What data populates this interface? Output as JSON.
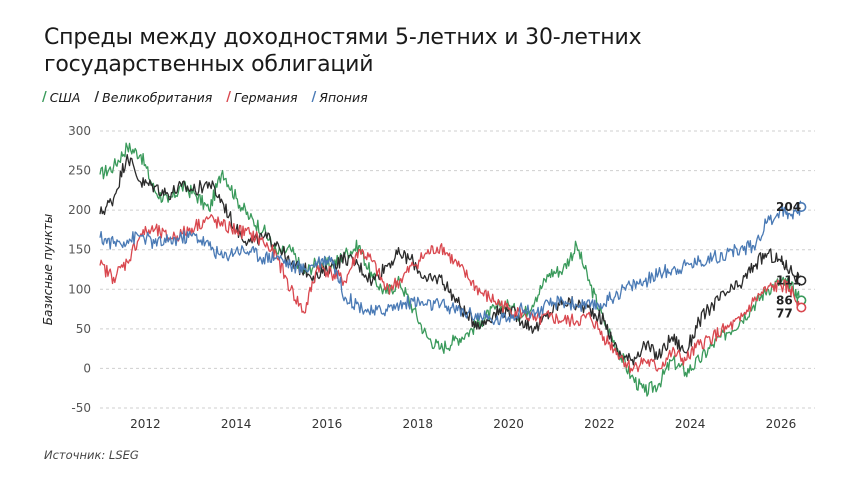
{
  "title": "Спреды между доходностями 5-летних и 30-летних государственных облигаций",
  "source": "Источник: LSEG",
  "chart_data": {
    "type": "line",
    "ylabel": "Базисные пункты",
    "xlabel": "",
    "ylim": [
      -50,
      300
    ],
    "xlim": [
      2011.0,
      2026.75
    ],
    "y_ticks": [
      300,
      250,
      200,
      150,
      100,
      50,
      0,
      -50
    ],
    "x_ticks": [
      2012,
      2014,
      2016,
      2018,
      2020,
      2022,
      2024,
      2026
    ],
    "grid": "horizontal-dashed",
    "legend_position": "top-left",
    "series": [
      {
        "name": "США",
        "color": "#3a9a5b",
        "end_value": "86",
        "x": [
          2011.0,
          2011.3,
          2011.6,
          2011.9,
          2012.2,
          2012.5,
          2012.8,
          2013.1,
          2013.4,
          2013.7,
          2014.0,
          2014.3,
          2014.6,
          2014.9,
          2015.2,
          2015.5,
          2015.8,
          2016.1,
          2016.4,
          2016.7,
          2017.0,
          2017.3,
          2017.6,
          2017.9,
          2018.2,
          2018.5,
          2018.8,
          2019.1,
          2019.4,
          2019.7,
          2020.0,
          2020.3,
          2020.6,
          2020.9,
          2021.2,
          2021.5,
          2021.8,
          2022.1,
          2022.4,
          2022.7,
          2023.0,
          2023.3,
          2023.6,
          2023.9,
          2024.2,
          2024.5,
          2024.8,
          2025.1,
          2025.4,
          2025.7,
          2026.0,
          2026.2,
          2026.45
        ],
        "values": [
          245,
          255,
          280,
          270,
          225,
          210,
          230,
          220,
          200,
          250,
          215,
          190,
          175,
          145,
          150,
          120,
          135,
          130,
          145,
          155,
          115,
          95,
          110,
          75,
          40,
          25,
          35,
          45,
          60,
          75,
          80,
          65,
          90,
          120,
          125,
          155,
          105,
          60,
          25,
          -10,
          -30,
          -20,
          10,
          -5,
          10,
          30,
          45,
          60,
          80,
          100,
          110,
          105,
          86
        ]
      },
      {
        "name": "Великобритания",
        "color": "#2b2b2b",
        "end_value": "111",
        "x": [
          2011.0,
          2011.3,
          2011.6,
          2011.9,
          2012.2,
          2012.5,
          2012.8,
          2013.1,
          2013.4,
          2013.7,
          2014.0,
          2014.3,
          2014.6,
          2014.9,
          2015.2,
          2015.5,
          2015.8,
          2016.1,
          2016.4,
          2016.7,
          2017.0,
          2017.3,
          2017.6,
          2017.9,
          2018.2,
          2018.5,
          2018.8,
          2019.1,
          2019.4,
          2019.7,
          2020.0,
          2020.3,
          2020.6,
          2020.9,
          2021.2,
          2021.5,
          2021.8,
          2022.1,
          2022.4,
          2022.7,
          2023.0,
          2023.3,
          2023.6,
          2023.9,
          2024.2,
          2024.5,
          2024.8,
          2025.1,
          2025.4,
          2025.7,
          2026.0,
          2026.2,
          2026.45
        ],
        "values": [
          195,
          215,
          270,
          235,
          230,
          220,
          230,
          225,
          235,
          210,
          175,
          160,
          165,
          160,
          130,
          125,
          115,
          130,
          140,
          130,
          110,
          130,
          145,
          135,
          110,
          115,
          90,
          65,
          55,
          70,
          75,
          60,
          50,
          70,
          85,
          80,
          75,
          60,
          20,
          10,
          30,
          15,
          40,
          20,
          60,
          80,
          95,
          105,
          130,
          145,
          135,
          125,
          111
        ]
      },
      {
        "name": "Германия",
        "color": "#d9484f",
        "end_value": "77",
        "x": [
          2011.0,
          2011.3,
          2011.6,
          2011.9,
          2012.2,
          2012.5,
          2012.8,
          2013.1,
          2013.4,
          2013.7,
          2014.0,
          2014.3,
          2014.6,
          2014.9,
          2015.2,
          2015.5,
          2015.8,
          2016.1,
          2016.4,
          2016.7,
          2017.0,
          2017.3,
          2017.6,
          2017.9,
          2018.2,
          2018.5,
          2018.8,
          2019.1,
          2019.4,
          2019.7,
          2020.0,
          2020.3,
          2020.6,
          2020.9,
          2021.2,
          2021.5,
          2021.8,
          2022.1,
          2022.4,
          2022.7,
          2023.0,
          2023.3,
          2023.6,
          2023.9,
          2024.2,
          2024.5,
          2024.8,
          2025.1,
          2025.4,
          2025.7,
          2026.0,
          2026.2,
          2026.45
        ],
        "values": [
          130,
          115,
          135,
          170,
          175,
          165,
          170,
          180,
          190,
          180,
          175,
          170,
          160,
          140,
          100,
          70,
          130,
          120,
          110,
          150,
          135,
          100,
          110,
          130,
          145,
          155,
          135,
          115,
          95,
          85,
          75,
          70,
          60,
          65,
          60,
          60,
          65,
          40,
          20,
          0,
          10,
          0,
          20,
          10,
          30,
          40,
          50,
          60,
          85,
          100,
          105,
          100,
          77
        ]
      },
      {
        "name": "Япония",
        "color": "#4a7ab5",
        "end_value": "204",
        "x": [
          2011.0,
          2011.3,
          2011.6,
          2011.9,
          2012.2,
          2012.5,
          2012.8,
          2013.1,
          2013.4,
          2013.7,
          2014.0,
          2014.3,
          2014.6,
          2014.9,
          2015.2,
          2015.5,
          2015.8,
          2016.1,
          2016.4,
          2016.7,
          2017.0,
          2017.3,
          2017.6,
          2017.9,
          2018.2,
          2018.5,
          2018.8,
          2019.1,
          2019.4,
          2019.7,
          2020.0,
          2020.3,
          2020.6,
          2020.9,
          2021.2,
          2021.5,
          2021.8,
          2022.1,
          2022.4,
          2022.7,
          2023.0,
          2023.3,
          2023.6,
          2023.9,
          2024.2,
          2024.5,
          2024.8,
          2025.1,
          2025.4,
          2025.7,
          2026.0,
          2026.2,
          2026.45
        ],
        "values": [
          165,
          158,
          162,
          168,
          158,
          160,
          165,
          168,
          155,
          140,
          150,
          148,
          140,
          142,
          130,
          125,
          135,
          140,
          90,
          80,
          70,
          75,
          80,
          85,
          80,
          80,
          75,
          70,
          65,
          60,
          65,
          75,
          70,
          80,
          85,
          80,
          78,
          82,
          95,
          105,
          110,
          120,
          125,
          130,
          135,
          140,
          145,
          150,
          155,
          185,
          200,
          195,
          204
        ]
      }
    ]
  }
}
